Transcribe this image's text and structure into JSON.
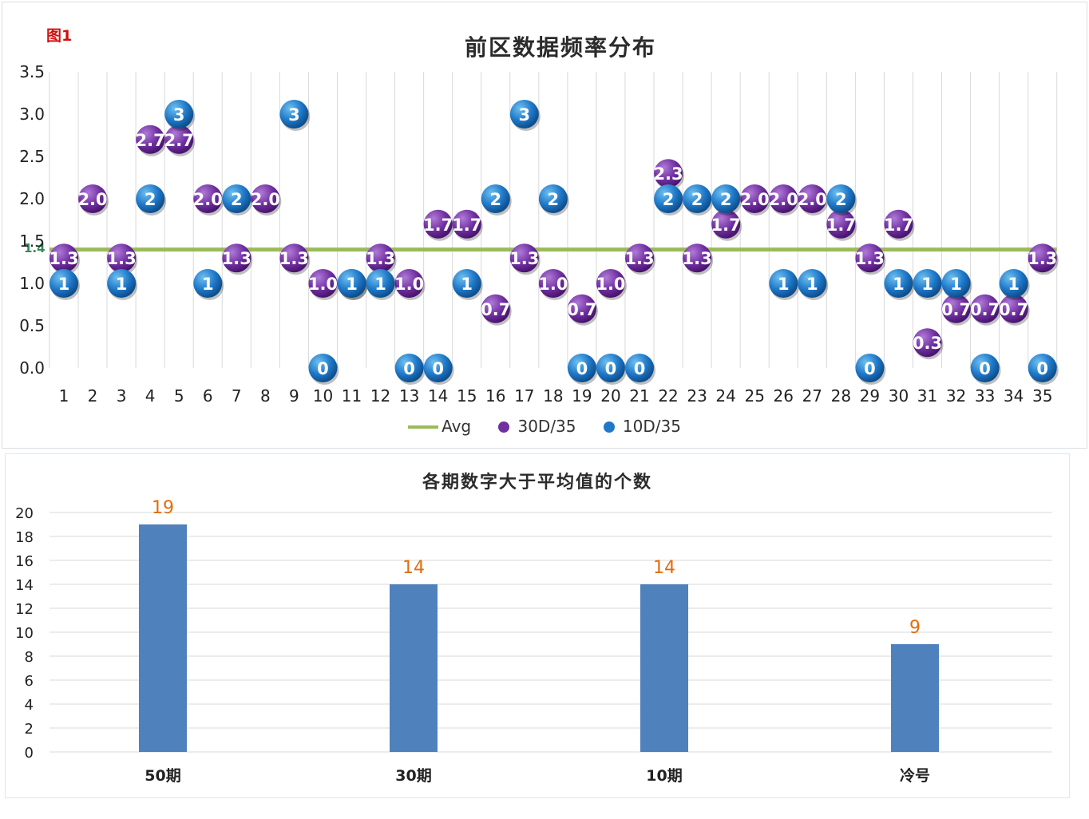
{
  "figure_label": "图1",
  "colors": {
    "avg": "#9bbb59",
    "purple": "#7030a0",
    "blue": "#1f78c8",
    "bar": "#4f81bd",
    "bar_label": "#e46c0a"
  },
  "chart_data": [
    {
      "type": "scatter",
      "title": "前区数据频率分布",
      "x": [
        "1",
        "2",
        "3",
        "4",
        "5",
        "6",
        "7",
        "8",
        "9",
        "10",
        "11",
        "12",
        "13",
        "14",
        "15",
        "16",
        "17",
        "18",
        "19",
        "20",
        "21",
        "22",
        "23",
        "24",
        "25",
        "26",
        "27",
        "28",
        "29",
        "30",
        "31",
        "32",
        "33",
        "34",
        "35"
      ],
      "ylim": [
        0,
        3.5
      ],
      "yticks": [
        "0.0",
        "0.5",
        "1.0",
        "1.5",
        "2.0",
        "2.5",
        "3.0",
        "3.5"
      ],
      "grid": "vertical",
      "legend_position": "bottom",
      "avg": {
        "name": "Avg",
        "value": 1.4,
        "label": "1.4"
      },
      "series": [
        {
          "name": "30D/35",
          "values": [
            1.3,
            2.0,
            1.3,
            2.7,
            2.7,
            2.0,
            1.3,
            2.0,
            1.3,
            1.0,
            1.0,
            1.3,
            1.0,
            1.7,
            1.7,
            0.7,
            1.3,
            1.0,
            0.7,
            1.0,
            1.3,
            2.3,
            1.3,
            1.7,
            2.0,
            2.0,
            2.0,
            1.7,
            1.3,
            1.7,
            0.3,
            0.7,
            0.7,
            0.7,
            1.3
          ],
          "labels": [
            "1.3",
            "2.0",
            "1.3",
            "2.7",
            "2.7",
            "2.0",
            "1.3",
            "2.0",
            "1.3",
            "1.0",
            "1.0",
            "1.3",
            "1.0",
            "1.7",
            "1.7",
            "0.7",
            "1.3",
            "1.0",
            "0.7",
            "1.0",
            "1.3",
            "2.3",
            "1.3",
            "1.7",
            "2.0",
            "2.0",
            "2.0",
            "1.7",
            "1.3",
            "1.7",
            "0.3",
            "0.7",
            "0.7",
            "0.7",
            "1.3"
          ]
        },
        {
          "name": "10D/35",
          "values": [
            1,
            null,
            1,
            2,
            3,
            1,
            2,
            null,
            3,
            0,
            1,
            1,
            0,
            0,
            1,
            2,
            3,
            2,
            0,
            0,
            0,
            2,
            2,
            2,
            null,
            1,
            1,
            2,
            0,
            1,
            1,
            1,
            0,
            1,
            0
          ],
          "labels": [
            "1",
            "",
            "1",
            "2",
            "3",
            "1",
            "2",
            "",
            "3",
            "0",
            "1",
            "1",
            "0",
            "0",
            "1",
            "2",
            "3",
            "2",
            "0",
            "0",
            "0",
            "2",
            "2",
            "2",
            "",
            "1",
            "1",
            "2",
            "0",
            "1",
            "1",
            "1",
            "0",
            "1",
            "0"
          ]
        }
      ]
    },
    {
      "type": "bar",
      "title": "各期数字大于平均值的个数",
      "categories": [
        "50期",
        "30期",
        "10期",
        "冷号"
      ],
      "values": [
        19,
        14,
        14,
        9
      ],
      "ylim": [
        0,
        20
      ],
      "yticks": [
        "0",
        "2",
        "4",
        "6",
        "8",
        "10",
        "12",
        "14",
        "16",
        "18",
        "20"
      ]
    }
  ]
}
